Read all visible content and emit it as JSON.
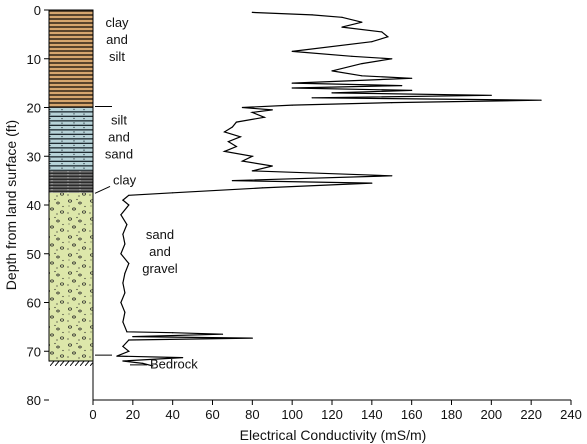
{
  "chart_data": {
    "type": "line",
    "title": "",
    "xlabel": "Electrical Conductivity (mS/m)",
    "ylabel": "Depth from land surface (ft)",
    "xlim": [
      0,
      240
    ],
    "ylim": [
      0,
      80
    ],
    "y_inverted": true,
    "x_ticks": [
      "0",
      "20",
      "40",
      "60",
      "80",
      "100",
      "120",
      "140",
      "160",
      "180",
      "200",
      "220",
      "240"
    ],
    "y_ticks": [
      "0",
      "10",
      "20",
      "30",
      "40",
      "50",
      "60",
      "70",
      "80"
    ],
    "grid": false,
    "series": [
      {
        "name": "",
        "points": [
          [
            80,
            0.5
          ],
          [
            110,
            1
          ],
          [
            125,
            1.5
          ],
          [
            135,
            2.5
          ],
          [
            125,
            3.5
          ],
          [
            145,
            4.5
          ],
          [
            148,
            5.5
          ],
          [
            140,
            6.5
          ],
          [
            100,
            8.5
          ],
          [
            130,
            9.5
          ],
          [
            150,
            10
          ],
          [
            135,
            11
          ],
          [
            120,
            12.5
          ],
          [
            135,
            13.5
          ],
          [
            160,
            14
          ],
          [
            100,
            15
          ],
          [
            155,
            15.5
          ],
          [
            100,
            16
          ],
          [
            160,
            16.5
          ],
          [
            120,
            17
          ],
          [
            200,
            17.5
          ],
          [
            110,
            18
          ],
          [
            225,
            18.5
          ],
          [
            150,
            19
          ],
          [
            100,
            19.5
          ],
          [
            75,
            20
          ],
          [
            90,
            20.5
          ],
          [
            80,
            21
          ],
          [
            86,
            22
          ],
          [
            72,
            23
          ],
          [
            70,
            24
          ],
          [
            66,
            25
          ],
          [
            74,
            26
          ],
          [
            68,
            27
          ],
          [
            72,
            28
          ],
          [
            66,
            29
          ],
          [
            80,
            30
          ],
          [
            75,
            31
          ],
          [
            90,
            32
          ],
          [
            80,
            33
          ],
          [
            150,
            34
          ],
          [
            70,
            35
          ],
          [
            140,
            35.5
          ],
          [
            85,
            36.5
          ],
          [
            40,
            37.5
          ],
          [
            18,
            38
          ],
          [
            15,
            39
          ],
          [
            18,
            40
          ],
          [
            14,
            42
          ],
          [
            17,
            44
          ],
          [
            15,
            46
          ],
          [
            16,
            48
          ],
          [
            14,
            50
          ],
          [
            18,
            52
          ],
          [
            16,
            54
          ],
          [
            15,
            56
          ],
          [
            16,
            58
          ],
          [
            14,
            60
          ],
          [
            16,
            62
          ],
          [
            15,
            64
          ],
          [
            17,
            66
          ],
          [
            40,
            66.2
          ],
          [
            65,
            66.5
          ],
          [
            20,
            67
          ],
          [
            80,
            67.3
          ],
          [
            18,
            67.7
          ],
          [
            15,
            69
          ],
          [
            18,
            70
          ],
          [
            12,
            71
          ],
          [
            45,
            71.3
          ],
          [
            15,
            72
          ],
          [
            25,
            72.5
          ],
          [
            30,
            73
          ]
        ]
      }
    ],
    "lithology": [
      {
        "label": "clay and silt",
        "lines": [
          "clay",
          "and",
          "silt"
        ],
        "top": 0,
        "bottom": 20,
        "color": "#d4a46c"
      },
      {
        "label": "silt and sand",
        "lines": [
          "silt",
          "and",
          "sand"
        ],
        "top": 20,
        "bottom": 33,
        "color": "#b3d0d6"
      },
      {
        "label": "clay",
        "lines": [
          "clay"
        ],
        "top": 33,
        "bottom": 37.5,
        "color": "#5c5c5c"
      },
      {
        "label": "sand and gravel",
        "lines": [
          "sand",
          "and",
          "gravel"
        ],
        "top": 37.5,
        "bottom": 72,
        "color": "#dbe5a8"
      },
      {
        "label": "Bedrock",
        "lines": [
          "Bedrock"
        ],
        "top": 72,
        "bottom": 72.8,
        "color": "#ffffff"
      }
    ]
  }
}
